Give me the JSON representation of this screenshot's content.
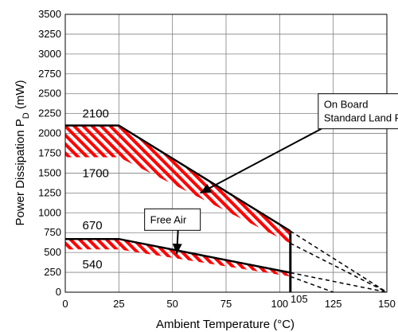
{
  "chart_data": {
    "type": "line",
    "xlabel": "Ambient Temperature (°C)",
    "ylabel_main": "Power Dissipation P",
    "ylabel_sub": "D",
    "ylabel_unit": " (mW)",
    "xlim": [
      0,
      150
    ],
    "ylim": [
      0,
      3500
    ],
    "x_ticks": [
      0,
      25,
      50,
      75,
      100,
      125,
      150
    ],
    "y_ticks": [
      0,
      250,
      500,
      750,
      1000,
      1250,
      1500,
      1750,
      2000,
      2250,
      2500,
      2750,
      3000,
      3250,
      3500
    ],
    "extra_x_tick": {
      "value": 105,
      "label": "105"
    },
    "grid": true,
    "series": [
      {
        "upper": [
          [
            0,
            2100
          ],
          [
            25,
            2100
          ],
          [
            105,
            770
          ]
        ],
        "lower": [
          [
            0,
            1700
          ],
          [
            25,
            1700
          ],
          [
            105,
            616
          ]
        ],
        "extension": [
          [
            105,
            770
          ],
          [
            150,
            0
          ]
        ],
        "extension_lower": [
          [
            105,
            616
          ],
          [
            150,
            0
          ]
        ]
      },
      {
        "name": "Free Air",
        "upper": [
          [
            0,
            670
          ],
          [
            25,
            670
          ],
          [
            105,
            246
          ]
        ],
        "lower": [
          [
            0,
            540
          ],
          [
            25,
            540
          ],
          [
            105,
            198
          ]
        ],
        "extension": [
          [
            105,
            246
          ],
          [
            150,
            0
          ]
        ],
        "extension_lower": [
          [
            105,
            198
          ],
          [
            125,
            0
          ]
        ]
      }
    ],
    "cutoff_line": {
      "x": 105,
      "y_from": 0,
      "y_to": 770
    },
    "annotations": [
      {
        "text": "2100",
        "x": 8,
        "y": 2200
      },
      {
        "text": "1700",
        "x": 8,
        "y": 1450
      },
      {
        "text": "670",
        "x": 8,
        "y": 790
      },
      {
        "text": "540",
        "x": 8,
        "y": 300
      }
    ],
    "callouts": [
      {
        "lines": [
          "On Board",
          "Standard Land Pattern"
        ],
        "box_x": 118,
        "box_y": 2500,
        "target": [
          63,
          1250
        ]
      },
      {
        "lines": [
          "Free Air"
        ],
        "box_x": 37,
        "box_y": 1050,
        "target": [
          52,
          480
        ]
      }
    ],
    "colors": {
      "hatch": "#ff0000",
      "line": "#000000",
      "grid": "#808080"
    }
  }
}
